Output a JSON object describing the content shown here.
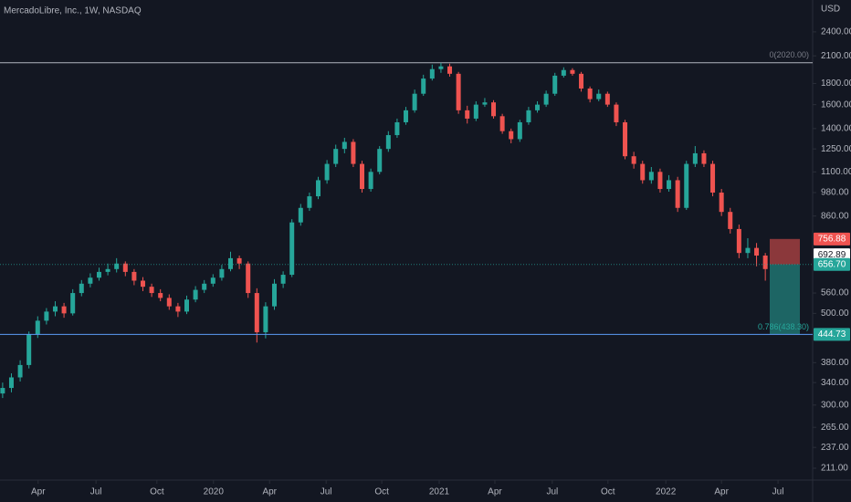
{
  "chart_data": {
    "type": "candlestick",
    "title": "MercadoLibre, Inc., 1W, NASDAQ",
    "currency": "USD",
    "log_scale": true,
    "grid": false,
    "up_color": "#26a69a",
    "down_color": "#ef5350",
    "xlim": [
      -0.6,
      184.8
    ],
    "xticks": [
      {
        "value": 8.1,
        "label": "Apr"
      },
      {
        "value": 21.3,
        "label": "Jul"
      },
      {
        "value": 35.2,
        "label": "Oct"
      },
      {
        "value": 48.1,
        "label": "2020"
      },
      {
        "value": 60.9,
        "label": "Apr"
      },
      {
        "value": 73.8,
        "label": "Jul"
      },
      {
        "value": 86.5,
        "label": "Oct"
      },
      {
        "value": 99.6,
        "label": "2021"
      },
      {
        "value": 112.3,
        "label": "Apr"
      },
      {
        "value": 125.4,
        "label": "Jul"
      },
      {
        "value": 138.1,
        "label": "Oct"
      },
      {
        "value": 151.3,
        "label": "2022"
      },
      {
        "value": 164,
        "label": "Apr"
      },
      {
        "value": 176.9,
        "label": "Jul"
      }
    ],
    "ylim": [
      198.5,
      2866
    ],
    "yticks": [
      {
        "value": 2400,
        "label": "2400.00"
      },
      {
        "value": 2100,
        "label": "2100.00"
      },
      {
        "value": 1800,
        "label": "1800.00"
      },
      {
        "value": 1600,
        "label": "1600.00"
      },
      {
        "value": 1400,
        "label": "1400.00"
      },
      {
        "value": 1250,
        "label": "1250.00"
      },
      {
        "value": 1100,
        "label": "1100.00"
      },
      {
        "value": 980,
        "label": "980.00"
      },
      {
        "value": 860,
        "label": "860.00"
      },
      {
        "value": 560,
        "label": "560.00"
      },
      {
        "value": 500,
        "label": "500.00"
      },
      {
        "value": 380,
        "label": "380.00"
      },
      {
        "value": 340,
        "label": "340.00"
      },
      {
        "value": 300,
        "label": "300.00"
      },
      {
        "value": 265,
        "label": "265.00"
      },
      {
        "value": 237,
        "label": "237.00"
      },
      {
        "value": 211,
        "label": "211.00"
      }
    ],
    "x": [
      0,
      2,
      4,
      6,
      8,
      10,
      12,
      14,
      16,
      18,
      20,
      22,
      24,
      26,
      28,
      30,
      32,
      34,
      36,
      38,
      40,
      42,
      44,
      46,
      48,
      50,
      52,
      54,
      56,
      58,
      60,
      62,
      64,
      66,
      68,
      70,
      72,
      74,
      76,
      78,
      80,
      82,
      84,
      86,
      88,
      90,
      92,
      94,
      96,
      98,
      100,
      102,
      104,
      106,
      108,
      110,
      112,
      114,
      116,
      118,
      120,
      122,
      124,
      126,
      128,
      130,
      132,
      134,
      136,
      138,
      140,
      142,
      144,
      146,
      148,
      150,
      152,
      154,
      156,
      158,
      160,
      162,
      164,
      166,
      168,
      170,
      172,
      174
    ],
    "ohlc": [
      [
        320,
        340,
        312,
        330
      ],
      [
        330,
        358,
        322,
        350
      ],
      [
        350,
        385,
        342,
        375
      ],
      [
        375,
        452,
        368,
        445
      ],
      [
        445,
        492,
        436,
        480
      ],
      [
        480,
        515,
        470,
        505
      ],
      [
        505,
        535,
        492,
        520
      ],
      [
        520,
        530,
        488,
        500
      ],
      [
        500,
        572,
        494,
        560
      ],
      [
        560,
        602,
        550,
        590
      ],
      [
        590,
        625,
        578,
        610
      ],
      [
        610,
        645,
        600,
        630
      ],
      [
        630,
        660,
        618,
        640
      ],
      [
        640,
        680,
        628,
        660
      ],
      [
        660,
        668,
        615,
        630
      ],
      [
        630,
        640,
        585,
        600
      ],
      [
        600,
        612,
        566,
        580
      ],
      [
        580,
        590,
        548,
        560
      ],
      [
        560,
        572,
        535,
        545
      ],
      [
        545,
        556,
        510,
        520
      ],
      [
        520,
        530,
        490,
        505
      ],
      [
        505,
        552,
        498,
        540
      ],
      [
        540,
        582,
        532,
        570
      ],
      [
        570,
        602,
        560,
        590
      ],
      [
        590,
        622,
        580,
        610
      ],
      [
        610,
        655,
        600,
        640
      ],
      [
        640,
        705,
        632,
        680
      ],
      [
        680,
        690,
        640,
        660
      ],
      [
        660,
        668,
        545,
        560
      ],
      [
        560,
        575,
        425,
        450
      ],
      [
        450,
        532,
        435,
        520
      ],
      [
        520,
        605,
        510,
        590
      ],
      [
        590,
        632,
        576,
        620
      ],
      [
        620,
        845,
        612,
        830
      ],
      [
        830,
        920,
        815,
        900
      ],
      [
        900,
        980,
        885,
        960
      ],
      [
        960,
        1070,
        945,
        1050
      ],
      [
        1050,
        1175,
        1030,
        1150
      ],
      [
        1150,
        1280,
        1130,
        1250
      ],
      [
        1250,
        1330,
        1220,
        1300
      ],
      [
        1300,
        1320,
        1130,
        1150
      ],
      [
        1150,
        1170,
        980,
        1000
      ],
      [
        1000,
        1120,
        985,
        1100
      ],
      [
        1100,
        1270,
        1085,
        1250
      ],
      [
        1250,
        1380,
        1230,
        1350
      ],
      [
        1350,
        1480,
        1330,
        1450
      ],
      [
        1450,
        1580,
        1430,
        1550
      ],
      [
        1550,
        1740,
        1530,
        1700
      ],
      [
        1700,
        1890,
        1680,
        1850
      ],
      [
        1850,
        2000,
        1830,
        1950
      ],
      [
        1950,
        2020,
        1910,
        1980
      ],
      [
        1980,
        2010,
        1870,
        1900
      ],
      [
        1900,
        1920,
        1520,
        1550
      ],
      [
        1550,
        1590,
        1440,
        1480
      ],
      [
        1480,
        1630,
        1460,
        1600
      ],
      [
        1600,
        1660,
        1580,
        1620
      ],
      [
        1620,
        1640,
        1480,
        1500
      ],
      [
        1500,
        1520,
        1360,
        1380
      ],
      [
        1380,
        1400,
        1290,
        1320
      ],
      [
        1320,
        1470,
        1300,
        1450
      ],
      [
        1450,
        1580,
        1430,
        1550
      ],
      [
        1550,
        1630,
        1530,
        1600
      ],
      [
        1600,
        1730,
        1580,
        1700
      ],
      [
        1700,
        1910,
        1680,
        1880
      ],
      [
        1880,
        1970,
        1860,
        1940
      ],
      [
        1940,
        1960,
        1880,
        1900
      ],
      [
        1900,
        1920,
        1720,
        1750
      ],
      [
        1750,
        1770,
        1620,
        1650
      ],
      [
        1650,
        1740,
        1630,
        1700
      ],
      [
        1700,
        1720,
        1580,
        1600
      ],
      [
        1600,
        1620,
        1420,
        1450
      ],
      [
        1450,
        1470,
        1180,
        1200
      ],
      [
        1200,
        1230,
        1120,
        1150
      ],
      [
        1150,
        1170,
        1030,
        1050
      ],
      [
        1050,
        1130,
        1030,
        1100
      ],
      [
        1100,
        1120,
        980,
        1000
      ],
      [
        1000,
        1080,
        985,
        1050
      ],
      [
        1050,
        1070,
        880,
        900
      ],
      [
        900,
        1170,
        890,
        1150
      ],
      [
        1150,
        1270,
        1130,
        1220
      ],
      [
        1220,
        1240,
        1130,
        1150
      ],
      [
        1150,
        1170,
        960,
        980
      ],
      [
        980,
        1000,
        860,
        880
      ],
      [
        880,
        900,
        780,
        800
      ],
      [
        800,
        820,
        680,
        700
      ],
      [
        700,
        760,
        680,
        720
      ],
      [
        720,
        740,
        650,
        690
      ],
      [
        690,
        700,
        600,
        640
      ]
    ],
    "levels": [
      {
        "value": 2020,
        "label": "0(2020.00)"
      }
    ],
    "fib_label": "0.786(438.30)",
    "position": {
      "stop": {
        "value": 756.88,
        "label": "756.88",
        "color": "#ef5350"
      },
      "entry": {
        "value": 656.7,
        "label": "656.70",
        "color": "#26a69a"
      },
      "target": {
        "value": 444.73,
        "label": "444.73",
        "color": "#26a69a"
      }
    },
    "last_price": {
      "value": 692.89,
      "label": "692.89",
      "color": "#ffffff"
    }
  }
}
